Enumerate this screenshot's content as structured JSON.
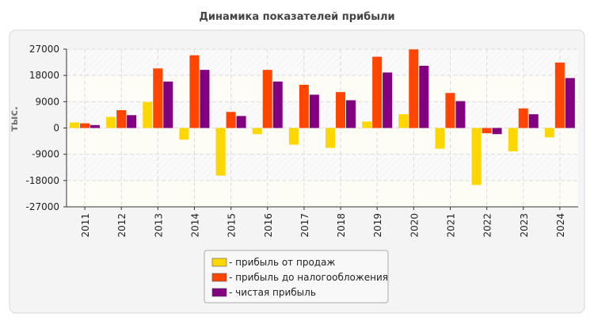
{
  "chart_data": {
    "type": "bar",
    "title": "Динамика показателей прибыли",
    "ylabel": "тыс.",
    "xlabel": "",
    "ylim": [
      -27000,
      27000
    ],
    "yticks": [
      27000,
      18000,
      9000,
      0,
      -9000,
      -18000,
      -27000
    ],
    "grid": true,
    "legend_position": "bottom",
    "categories": [
      "2011",
      "2012",
      "2013",
      "2014",
      "2015",
      "2016",
      "2017",
      "2018",
      "2019",
      "2020",
      "2021",
      "2022",
      "2023",
      "2024"
    ],
    "series": [
      {
        "name": "- прибыль от продаж",
        "color": "#FFD700",
        "values": [
          1900,
          3800,
          8900,
          -4000,
          -16300,
          -2100,
          -5700,
          -6800,
          2200,
          4700,
          -7100,
          -19500,
          -8000,
          -3200
        ]
      },
      {
        "name": "- прибыль до налогообложения",
        "color": "#FF4500",
        "values": [
          1600,
          6100,
          20400,
          24900,
          5500,
          19900,
          14800,
          12300,
          24400,
          26900,
          12000,
          -1800,
          6700,
          22400
        ]
      },
      {
        "name": "- чистая прибыль",
        "color": "#800080",
        "values": [
          1000,
          4400,
          15900,
          19900,
          4100,
          15900,
          11400,
          9500,
          19000,
          21300,
          9200,
          -2100,
          4700,
          17100
        ]
      }
    ]
  }
}
